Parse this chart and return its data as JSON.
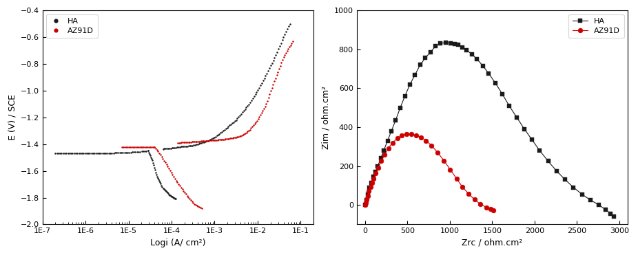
{
  "left": {
    "xlabel": "Logi (A/ cm²)",
    "ylabel": "E (V) / SCE",
    "ylim": [
      -2.0,
      -0.4
    ],
    "yticks": [
      -2.0,
      -1.8,
      -1.6,
      -1.4,
      -1.2,
      -1.0,
      -0.8,
      -0.6,
      -0.4
    ],
    "ha_color": "#1a1a1a",
    "az91d_color": "#cc0000",
    "ha_label": "HA",
    "az91d_label": "AZ91D",
    "ha_cathodic_i": [
      -6.7,
      -6.5,
      -6.3,
      -6.1,
      -5.9,
      -5.7,
      -5.5,
      -5.3,
      -5.1,
      -4.9,
      -4.7,
      -4.6,
      -4.55
    ],
    "ha_cathodic_e": [
      -1.47,
      -1.47,
      -1.47,
      -1.47,
      -1.47,
      -1.47,
      -1.47,
      -1.465,
      -1.463,
      -1.46,
      -1.455,
      -1.452,
      -1.45
    ],
    "ha_cathodic_drop_i": [
      -4.55,
      -4.45,
      -4.35,
      -4.2,
      -4.05,
      -3.9
    ],
    "ha_cathodic_drop_e": [
      -1.45,
      -1.52,
      -1.63,
      -1.73,
      -1.78,
      -1.81
    ],
    "ha_anodic_i": [
      -4.2,
      -4.0,
      -3.8,
      -3.5,
      -3.2,
      -3.0,
      -2.8,
      -2.5,
      -2.2,
      -2.0,
      -1.8,
      -1.6,
      -1.4,
      -1.25
    ],
    "ha_anodic_e": [
      -1.435,
      -1.43,
      -1.42,
      -1.41,
      -1.38,
      -1.35,
      -1.3,
      -1.22,
      -1.1,
      -1.0,
      -0.88,
      -0.75,
      -0.6,
      -0.5
    ],
    "az91d_cathodic_i": [
      -5.15,
      -4.95,
      -4.75,
      -4.55,
      -4.45,
      -4.4
    ],
    "az91d_cathodic_e": [
      -1.42,
      -1.42,
      -1.42,
      -1.42,
      -1.42,
      -1.42
    ],
    "az91d_cathodic_drop_i": [
      -4.4,
      -4.3,
      -4.1,
      -3.9,
      -3.7,
      -3.5,
      -3.3
    ],
    "az91d_cathodic_drop_e": [
      -1.42,
      -1.46,
      -1.56,
      -1.67,
      -1.76,
      -1.84,
      -1.88
    ],
    "az91d_anodic_i": [
      -3.85,
      -3.6,
      -3.4,
      -3.2,
      -3.0,
      -2.8,
      -2.6,
      -2.4,
      -2.2,
      -2.0,
      -1.8,
      -1.6,
      -1.4,
      -1.18
    ],
    "az91d_anodic_e": [
      -1.39,
      -1.385,
      -1.38,
      -1.375,
      -1.37,
      -1.365,
      -1.355,
      -1.34,
      -1.3,
      -1.22,
      -1.1,
      -0.92,
      -0.75,
      -0.63
    ]
  },
  "right": {
    "xlabel": "Zrc / ohm.cm²",
    "ylabel": "Zim / ohm.cm²",
    "xlim": [
      -100,
      3100
    ],
    "ylim": [
      -100,
      1000
    ],
    "xticks": [
      0,
      500,
      1000,
      1500,
      2000,
      2500,
      3000
    ],
    "yticks": [
      0,
      200,
      400,
      600,
      800,
      1000
    ],
    "ha_color": "#1a1a1a",
    "az91d_color": "#cc0000",
    "ha_label": "HA",
    "az91d_label": "AZ91D",
    "ha_zre": [
      0,
      15,
      30,
      50,
      70,
      95,
      120,
      150,
      185,
      220,
      265,
      310,
      360,
      415,
      470,
      530,
      590,
      650,
      710,
      770,
      830,
      890,
      950,
      1010,
      1060,
      1100,
      1150,
      1200,
      1260,
      1320,
      1390,
      1460,
      1540,
      1620,
      1700,
      1790,
      1880,
      1970,
      2060,
      2160,
      2260,
      2360,
      2460,
      2560,
      2660,
      2760,
      2840,
      2900,
      2940
    ],
    "ha_zim": [
      0,
      25,
      55,
      90,
      115,
      145,
      170,
      200,
      240,
      280,
      330,
      380,
      435,
      500,
      560,
      620,
      670,
      720,
      755,
      785,
      815,
      830,
      835,
      832,
      828,
      822,
      810,
      795,
      775,
      750,
      715,
      675,
      625,
      570,
      510,
      450,
      390,
      335,
      280,
      225,
      175,
      130,
      90,
      55,
      25,
      0,
      -25,
      -45,
      -58
    ],
    "az91d_zre": [
      0,
      8,
      18,
      30,
      45,
      62,
      80,
      100,
      125,
      155,
      190,
      230,
      275,
      325,
      380,
      435,
      490,
      545,
      600,
      660,
      720,
      785,
      855,
      930,
      1005,
      1080,
      1150,
      1220,
      1290,
      1360,
      1430,
      1480,
      1510
    ],
    "az91d_zim": [
      0,
      12,
      28,
      48,
      72,
      92,
      112,
      135,
      162,
      192,
      225,
      258,
      292,
      320,
      342,
      358,
      365,
      363,
      358,
      348,
      330,
      305,
      270,
      228,
      182,
      135,
      92,
      58,
      28,
      5,
      -12,
      -22,
      -28
    ]
  }
}
